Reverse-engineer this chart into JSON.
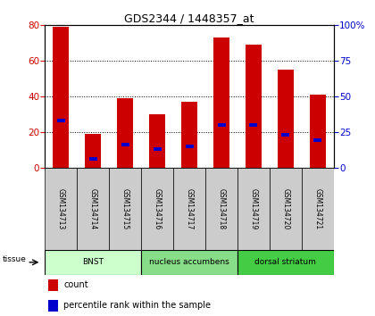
{
  "title": "GDS2344 / 1448357_at",
  "samples": [
    "GSM134713",
    "GSM134714",
    "GSM134715",
    "GSM134716",
    "GSM134717",
    "GSM134718",
    "GSM134719",
    "GSM134720",
    "GSM134721"
  ],
  "counts": [
    79,
    19,
    39,
    30,
    37,
    73,
    69,
    55,
    41
  ],
  "percentile_ranks": [
    33,
    6,
    16,
    13,
    15,
    30,
    30,
    23,
    19
  ],
  "ylim_left": [
    0,
    80
  ],
  "ylim_right": [
    0,
    100
  ],
  "yticks_left": [
    0,
    20,
    40,
    60,
    80
  ],
  "yticks_right": [
    0,
    25,
    50,
    75,
    100
  ],
  "groups": [
    {
      "label": "BNST",
      "start": 0,
      "end": 3,
      "color": "#ccffcc"
    },
    {
      "label": "nucleus accumbens",
      "start": 3,
      "end": 6,
      "color": "#88dd88"
    },
    {
      "label": "dorsal striatum",
      "start": 6,
      "end": 9,
      "color": "#44cc44"
    }
  ],
  "bar_color": "#cc0000",
  "marker_color": "#0000cc",
  "bar_width": 0.5,
  "tissue_label": "tissue",
  "legend_count_label": "count",
  "legend_pct_label": "percentile rank within the sample",
  "bg_color": "#ffffff",
  "plot_bg_color": "#ffffff",
  "tick_label_color_left": "#cc0000",
  "tick_label_color_right": "#0000cc",
  "title_color": "#000000",
  "grid_color": "#000000",
  "sample_area_color": "#cccccc"
}
